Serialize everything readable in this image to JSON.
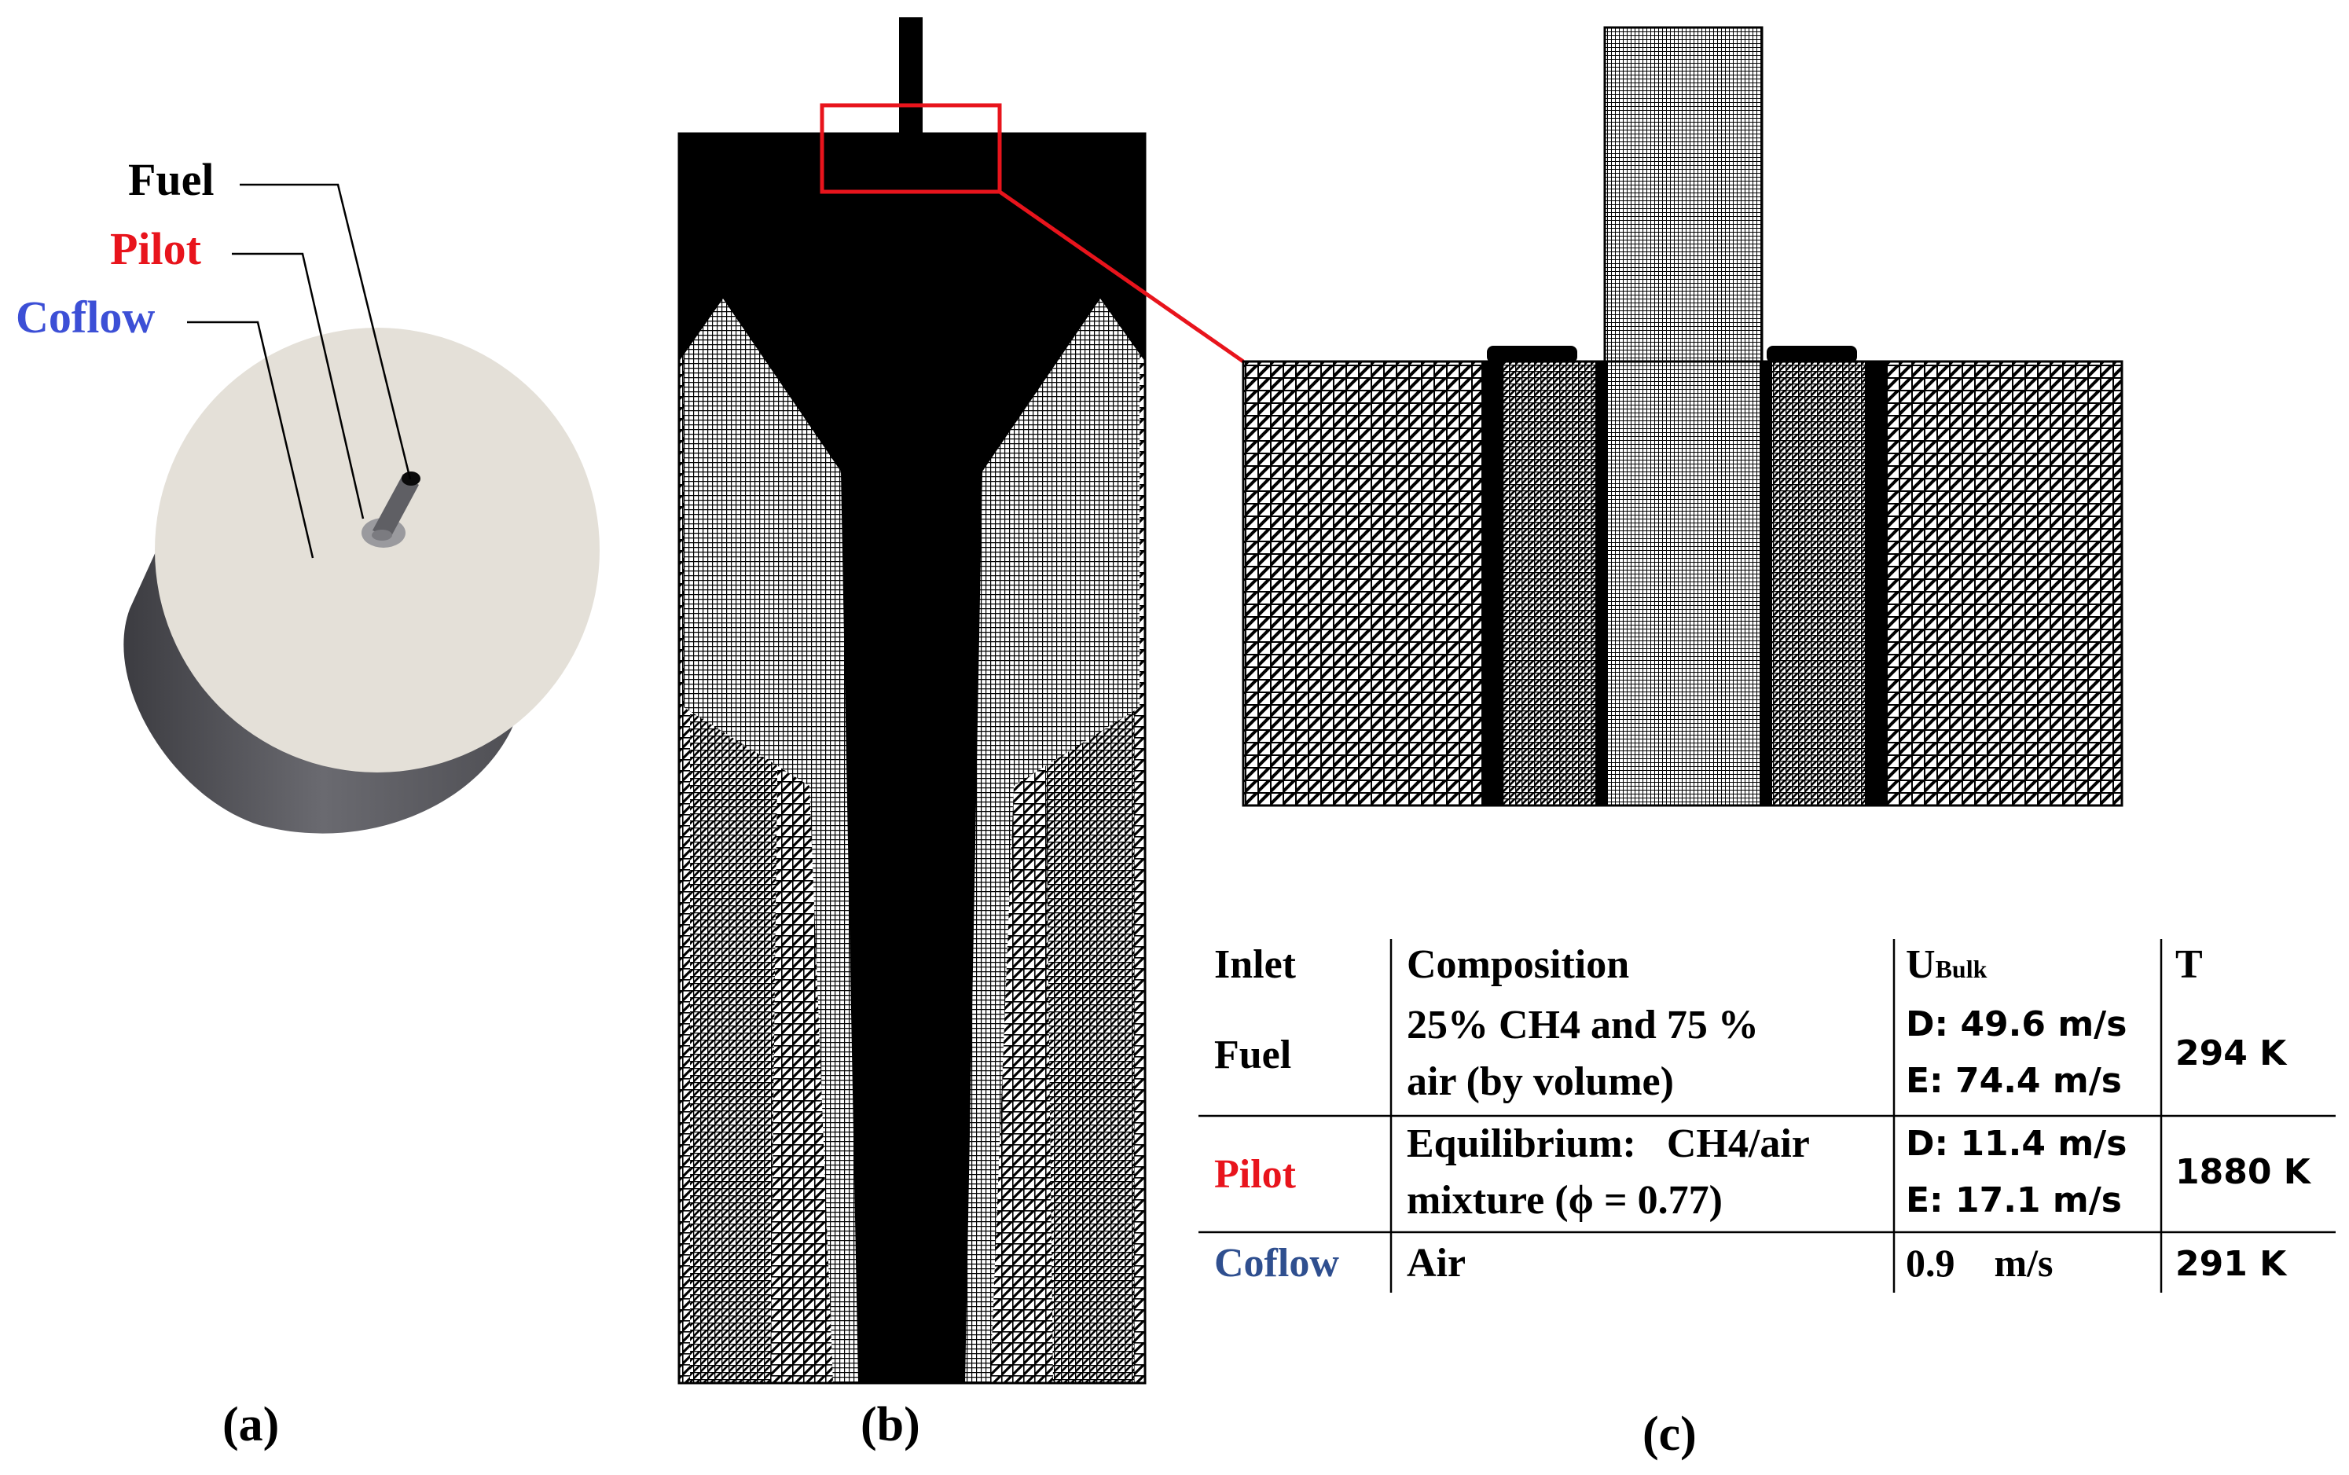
{
  "panel_a": {
    "labels": {
      "fuel": "Fuel",
      "pilot": "Pilot",
      "coflow": "Coflow"
    },
    "caption": "(a)"
  },
  "panel_b": {
    "caption": "(b)"
  },
  "panel_c": {
    "caption": "(c)"
  },
  "table": {
    "headers": {
      "inlet": "Inlet",
      "composition": "Composition",
      "ubulk_main": "U",
      "ubulk_sub": "Bulk",
      "temperature": "T"
    },
    "rows": [
      {
        "inlet": "Fuel",
        "composition_line1": "25% CH4 and 75 %",
        "composition_line2": "air (by volume)",
        "velocity_line1": "D: 49.6 m/s",
        "velocity_line2": "E: 74.4 m/s",
        "temperature": "294 K"
      },
      {
        "inlet": "Pilot",
        "composition_line1": "Equilibrium:   CH4/air",
        "composition_line2": "mixture (ϕ = 0.77)",
        "velocity_line1": "D: 11.4 m/s",
        "velocity_line2": "E: 17.1 m/s",
        "temperature": "1880 K"
      },
      {
        "inlet": "Coflow",
        "composition_line1": "Air",
        "velocity_line1": "0.9    m/s",
        "temperature": "291 K"
      }
    ]
  },
  "colors": {
    "fuel": "#000000",
    "pilot": "#e8141c",
    "coflow": "#3c4fd6",
    "coflow_table": "#2f4f8f",
    "zoom_box": "#e8141c",
    "cylinder_top": "#e4e0d8",
    "cylinder_side": "#5b5b60",
    "mesh": "#000000"
  }
}
